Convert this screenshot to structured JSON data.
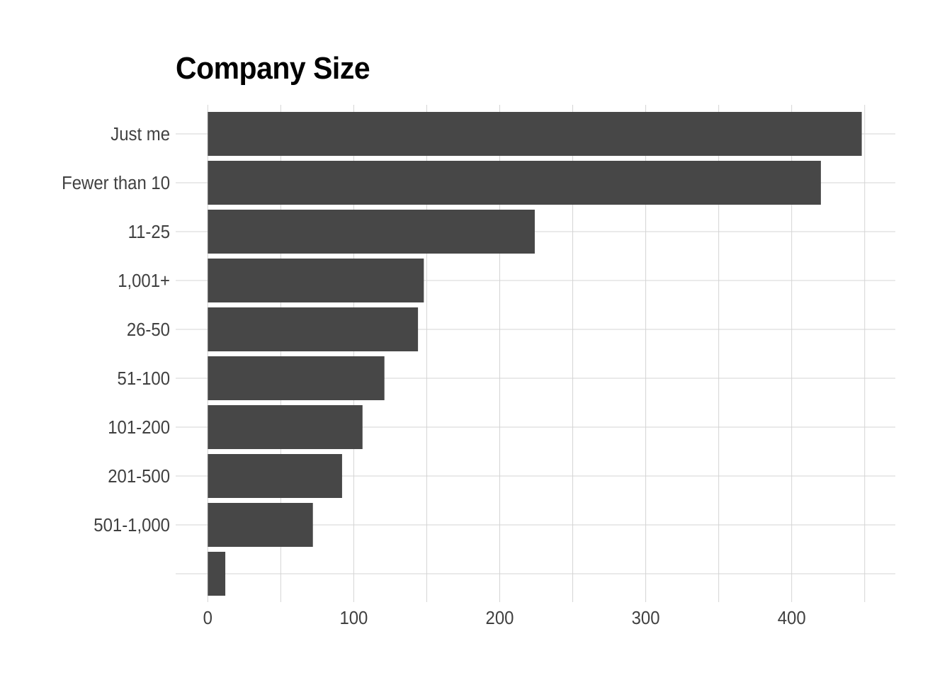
{
  "chart_data": {
    "type": "bar",
    "orientation": "horizontal",
    "title": "Company Size",
    "xlabel": "",
    "ylabel": "",
    "categories": [
      "Just me",
      "Fewer than 10",
      "11-25",
      "1,001+",
      "26-50",
      "51-100",
      "101-200",
      "201-500",
      "501-1,000",
      ""
    ],
    "values": [
      448,
      420,
      224,
      148,
      144,
      121,
      106,
      92,
      72,
      12
    ],
    "xlim": [
      -22,
      471
    ],
    "xticks": [
      0,
      100,
      200,
      300,
      400
    ],
    "minor_xticks": [
      50,
      150,
      250,
      350,
      450
    ],
    "grid": true,
    "legend": "none",
    "colors": {
      "bar": "#474747",
      "grid": "#d4d4d4",
      "text": "#404040",
      "title": "#000000"
    }
  }
}
